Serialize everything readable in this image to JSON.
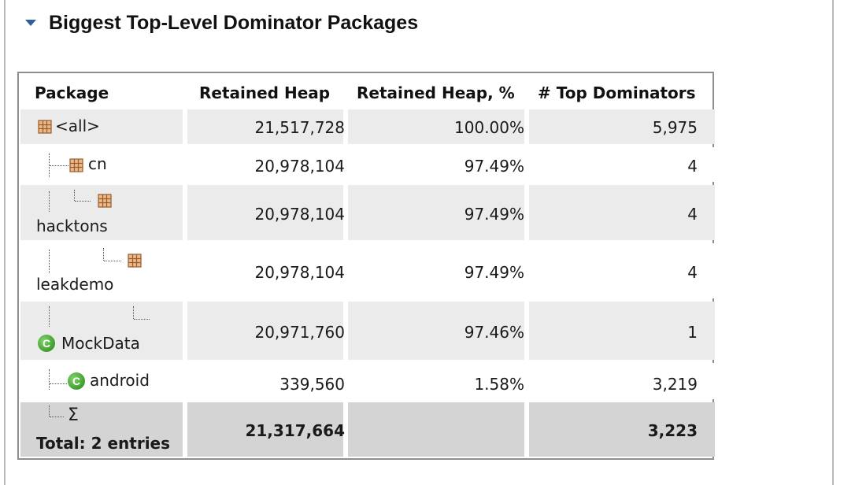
{
  "section": {
    "title": "Biggest Top-Level Dominator Packages",
    "toggle_icon": "disclosure-triangle-down-icon"
  },
  "table": {
    "columns": [
      "Package",
      "Retained Heap",
      "Retained Heap, %",
      "# Top Dominators"
    ],
    "rows": [
      {
        "name": "<all>",
        "icon": "package-icon",
        "retained_heap": "21,517,728",
        "retained_pct": "100.00%",
        "top_dominators": "5,975"
      },
      {
        "name": "cn",
        "icon": "package-icon",
        "retained_heap": "20,978,104",
        "retained_pct": "97.49%",
        "top_dominators": "4"
      },
      {
        "name": "hacktons",
        "icon": "package-icon",
        "retained_heap": "20,978,104",
        "retained_pct": "97.49%",
        "top_dominators": "4"
      },
      {
        "name": "leakdemo",
        "icon": "package-icon",
        "retained_heap": "20,978,104",
        "retained_pct": "97.49%",
        "top_dominators": "4"
      },
      {
        "name": "MockData",
        "icon": "class-icon",
        "icon_letter": "C",
        "retained_heap": "20,971,760",
        "retained_pct": "97.46%",
        "top_dominators": "1"
      },
      {
        "name": "android",
        "icon": "class-icon",
        "icon_letter": "C",
        "retained_heap": "339,560",
        "retained_pct": "1.58%",
        "top_dominators": "3,219"
      }
    ],
    "total": {
      "icon": "sigma-icon",
      "icon_glyph": "Σ",
      "label": "Total: 2 entries",
      "retained_heap": "21,317,664",
      "retained_pct": "",
      "top_dominators": "3,223"
    }
  },
  "colors": {
    "row_gray": "#ebebeb",
    "row_white": "#ffffff",
    "total_row": "#d4d4d4",
    "class_icon": "#3f9e2f",
    "toggle": "#2f5f9e"
  }
}
